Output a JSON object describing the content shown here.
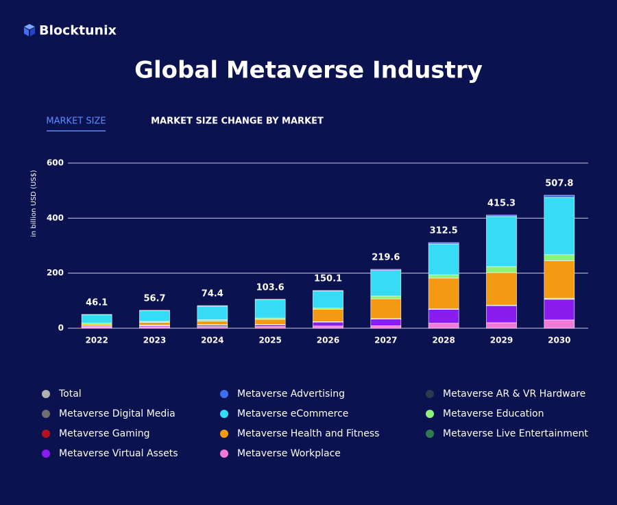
{
  "brand": "Blocktunix",
  "tabs": [
    "MARKET SIZE",
    "MARKET SIZE CHANGE BY MARKET"
  ],
  "chart_data": {
    "type": "bar",
    "stacked": true,
    "title": "Global Metaverse Industry",
    "y_label": "in billion USD (US$)",
    "categories": [
      "2022",
      "2023",
      "2024",
      "2025",
      "2026",
      "2027",
      "2028",
      "2029",
      "2030"
    ],
    "ylim": [
      0,
      600
    ],
    "yticks": [
      0,
      200,
      400,
      600
    ],
    "grid": true,
    "series": [
      {
        "name": "Total",
        "color": "#b0b0b0",
        "values": [
          46.1,
          56.7,
          74.4,
          103.6,
          150.1,
          219.6,
          312.5,
          415.3,
          507.8
        ]
      },
      {
        "name": "Metaverse Advertising",
        "color": "#3d6ff2",
        "values": [
          2,
          2,
          2,
          2,
          2,
          4,
          5,
          5,
          8
        ]
      },
      {
        "name": "Metaverse AR & VR Hardware",
        "color": "#2c3a4f",
        "values": [
          0,
          0,
          0,
          0,
          0,
          0,
          0,
          0,
          0
        ]
      },
      {
        "name": "Metaverse Digital Media",
        "color": "#6f6f6f",
        "values": [
          0,
          0,
          0,
          0,
          0,
          0,
          0,
          0,
          0
        ]
      },
      {
        "name": "Metaverse eCommerce",
        "color": "#36dcf5",
        "values": [
          29,
          38,
          49,
          66,
          61,
          93,
          112,
          182,
          208
        ]
      },
      {
        "name": "Metaverse Education",
        "color": "#8ef27a",
        "values": [
          5,
          4,
          5,
          5,
          5,
          10,
          12,
          22,
          22
        ]
      },
      {
        "name": "Metaverse Gaming",
        "color": "#b3121f",
        "values": [
          1,
          1,
          1,
          1,
          1,
          1,
          1,
          1,
          2
        ]
      },
      {
        "name": "Metaverse Health and Fitness",
        "color": "#f39a12",
        "values": [
          5,
          10,
          13,
          18,
          45,
          72,
          112,
          118,
          136
        ]
      },
      {
        "name": "Metaverse Live Entertainment",
        "color": "#2e7d4f",
        "values": [
          1,
          1,
          1,
          1,
          1,
          1,
          1,
          1,
          2
        ]
      },
      {
        "name": "Metaverse Virtual Assets",
        "color": "#8b1cf0",
        "values": [
          3,
          4,
          5,
          6,
          14,
          24,
          50,
          62,
          75
        ]
      },
      {
        "name": "Metaverse Workplace",
        "color": "#f27ad8",
        "values": [
          4,
          5,
          6,
          6,
          8,
          9,
          18,
          20,
          30
        ]
      }
    ]
  }
}
